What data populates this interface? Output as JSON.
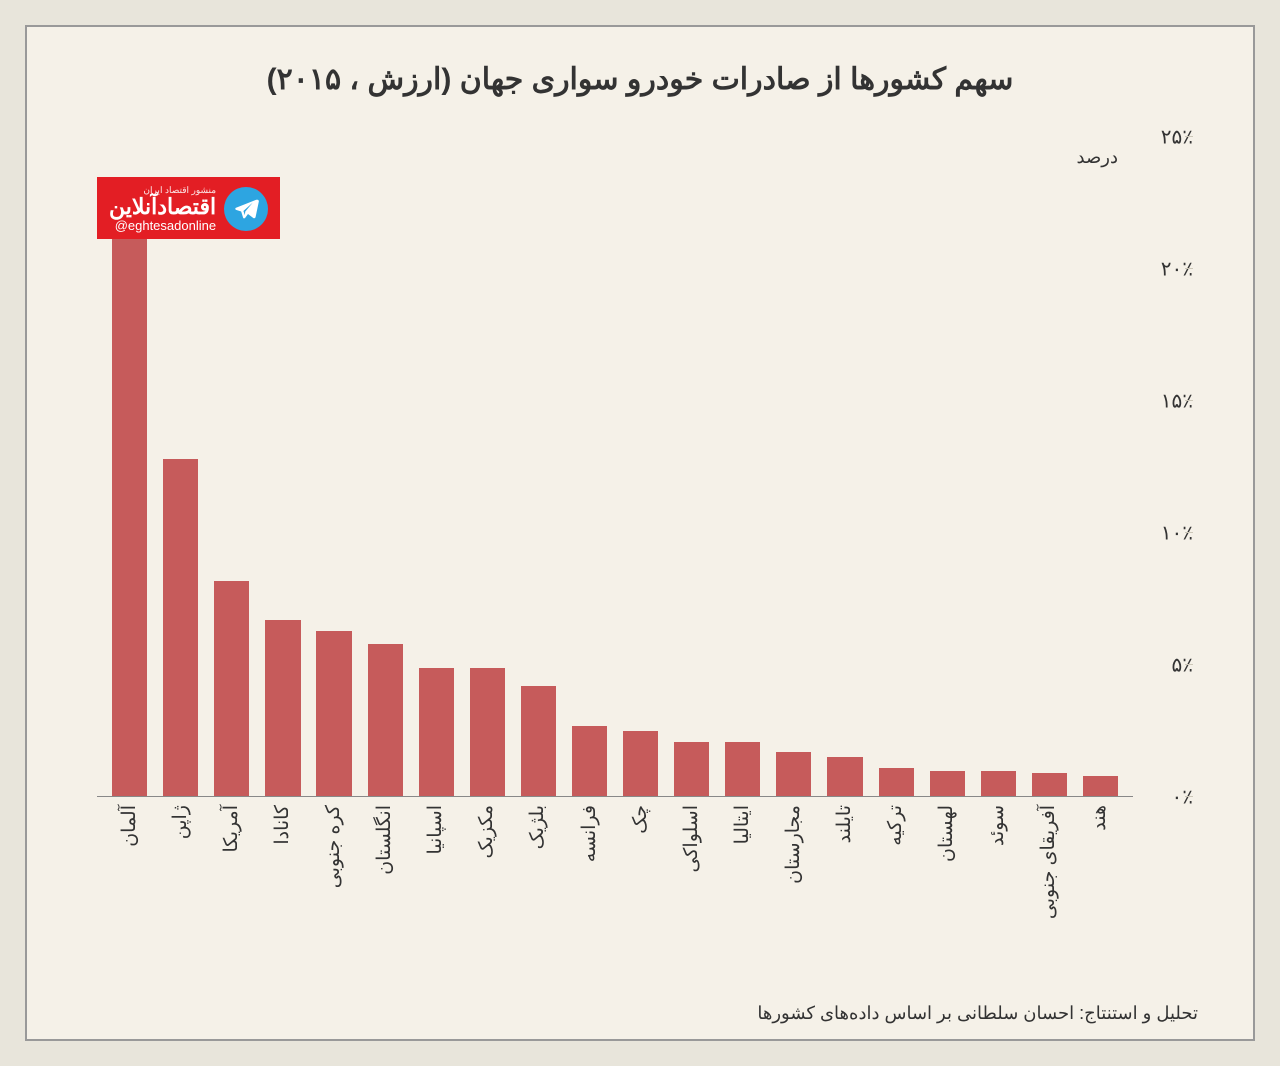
{
  "title": "سهم کشورها از صادرات خودرو سواری جهان (ارزش ، ۲۰۱۵)",
  "credit": "تحلیل و استنتاج: احسان سلطانی بر اساس داده‌های کشورها",
  "chart": {
    "type": "bar",
    "y_unit": "درصد",
    "y_max": 25,
    "y_ticks": [
      {
        "v": 0,
        "label": "۰٪"
      },
      {
        "v": 5,
        "label": "۵٪"
      },
      {
        "v": 10,
        "label": "۱۰٪"
      },
      {
        "v": 15,
        "label": "۱۵٪"
      },
      {
        "v": 20,
        "label": "۲۰٪"
      },
      {
        "v": 25,
        "label": "۲۵٪"
      }
    ],
    "bar_color": "#c65b5b",
    "background": "#f5f1e8",
    "data": [
      {
        "label": "آلمان",
        "value": 22.7
      },
      {
        "label": "ژاپن",
        "value": 12.8
      },
      {
        "label": "آمریکا",
        "value": 8.2
      },
      {
        "label": "کانادا",
        "value": 6.7
      },
      {
        "label": "کره جنوبی",
        "value": 6.3
      },
      {
        "label": "انگلستان",
        "value": 5.8
      },
      {
        "label": "اسپانیا",
        "value": 4.9
      },
      {
        "label": "مکزیک",
        "value": 4.9
      },
      {
        "label": "بلژیک",
        "value": 4.2
      },
      {
        "label": "فرانسه",
        "value": 2.7
      },
      {
        "label": "چک",
        "value": 2.5
      },
      {
        "label": "اسلواکی",
        "value": 2.1
      },
      {
        "label": "ایتالیا",
        "value": 2.1
      },
      {
        "label": "مجارستان",
        "value": 1.7
      },
      {
        "label": "تایلند",
        "value": 1.5
      },
      {
        "label": "ترکیه",
        "value": 1.1
      },
      {
        "label": "لهستان",
        "value": 1.0
      },
      {
        "label": "سوئد",
        "value": 1.0
      },
      {
        "label": "آفریقای جنوبی",
        "value": 0.9
      },
      {
        "label": "هند",
        "value": 0.8
      }
    ]
  },
  "logo": {
    "top": "منشور اقتصاد ایران",
    "main": "اقتصادآنلاین",
    "handle": "@eghtesadonline"
  }
}
